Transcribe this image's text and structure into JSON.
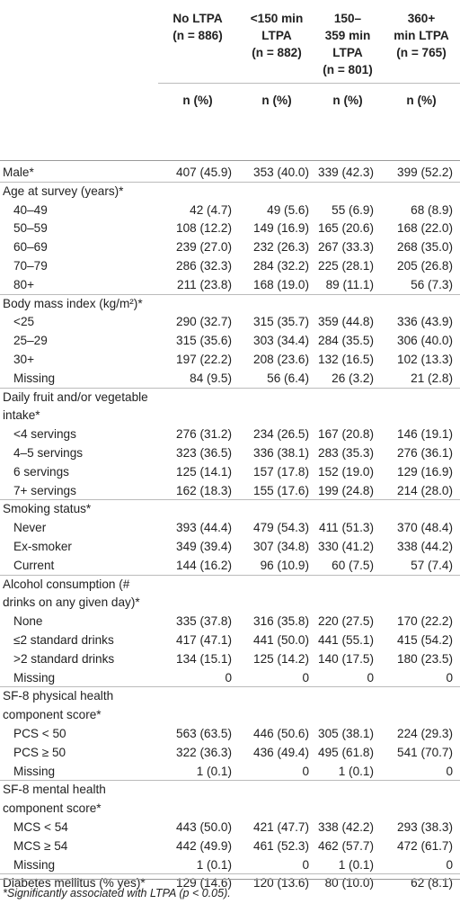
{
  "columns": [
    {
      "line1": "No LTPA",
      "line2": "(n = 886)",
      "line3": "",
      "line4": ""
    },
    {
      "line1": "<150 min",
      "line2": "LTPA",
      "line3": "(n = 882)",
      "line4": ""
    },
    {
      "line1": "150–",
      "line2": "359 min",
      "line3": "LTPA",
      "line4": "(n = 801)"
    },
    {
      "line1": "360+",
      "line2": "min LTPA",
      "line3": "(n = 765)",
      "line4": ""
    }
  ],
  "subheader": "n (%)",
  "rows": [
    {
      "label": "Male*",
      "values": [
        "407 (45.9)",
        "353 (40.0)",
        "339 (42.3)",
        "399 (52.2)"
      ]
    },
    {
      "label": "Age at survey (years)*",
      "header": true
    },
    {
      "label": "40–49",
      "indent": true,
      "values": [
        "42 (4.7)",
        "49 (5.6)",
        "55 (6.9)",
        "68 (8.9)"
      ]
    },
    {
      "label": "50–59",
      "indent": true,
      "values": [
        "108 (12.2)",
        "149 (16.9)",
        "165 (20.6)",
        "168 (22.0)"
      ]
    },
    {
      "label": "60–69",
      "indent": true,
      "values": [
        "239 (27.0)",
        "232 (26.3)",
        "267 (33.3)",
        "268 (35.0)"
      ]
    },
    {
      "label": "70–79",
      "indent": true,
      "values": [
        "286 (32.3)",
        "284 (32.2)",
        "225 (28.1)",
        "205 (26.8)"
      ]
    },
    {
      "label": "80+",
      "indent": true,
      "values": [
        "211 (23.8)",
        "168 (19.0)",
        "89 (11.1)",
        "56 (7.3)"
      ]
    },
    {
      "label": "Body mass index (kg/m²)*",
      "header": true
    },
    {
      "label": "<25",
      "indent": true,
      "values": [
        "290 (32.7)",
        "315 (35.7)",
        "359 (44.8)",
        "336 (43.9)"
      ]
    },
    {
      "label": "25–29",
      "indent": true,
      "values": [
        "315 (35.6)",
        "303 (34.4)",
        "284 (35.5)",
        "306 (40.0)"
      ]
    },
    {
      "label": "30+",
      "indent": true,
      "values": [
        "197 (22.2)",
        "208 (23.6)",
        "132 (16.5)",
        "102 (13.3)"
      ]
    },
    {
      "label": "Missing",
      "indent": true,
      "values": [
        "84 (9.5)",
        "56 (6.4)",
        "26 (3.2)",
        "21 (2.8)"
      ]
    },
    {
      "label": "Daily fruit and/or vegetable",
      "header": true
    },
    {
      "label": "intake*",
      "header": true,
      "cont": true
    },
    {
      "label": "<4 servings",
      "indent": true,
      "values": [
        "276 (31.2)",
        "234 (26.5)",
        "167 (20.8)",
        "146 (19.1)"
      ]
    },
    {
      "label": "4–5 servings",
      "indent": true,
      "values": [
        "323 (36.5)",
        "336 (38.1)",
        "283 (35.3)",
        "276 (36.1)"
      ]
    },
    {
      "label": "6 servings",
      "indent": true,
      "values": [
        "125 (14.1)",
        "157 (17.8)",
        "152 (19.0)",
        "129 (16.9)"
      ]
    },
    {
      "label": "7+ servings",
      "indent": true,
      "values": [
        "162 (18.3)",
        "155 (17.6)",
        "199 (24.8)",
        "214 (28.0)"
      ]
    },
    {
      "label": "Smoking status*",
      "header": true
    },
    {
      "label": "Never",
      "indent": true,
      "values": [
        "393 (44.4)",
        "479 (54.3)",
        "411 (51.3)",
        "370 (48.4)"
      ]
    },
    {
      "label": "Ex-smoker",
      "indent": true,
      "values": [
        "349 (39.4)",
        "307 (34.8)",
        "330 (41.2)",
        "338 (44.2)"
      ]
    },
    {
      "label": "Current",
      "indent": true,
      "values": [
        "144 (16.2)",
        "96 (10.9)",
        "60 (7.5)",
        "57 (7.4)"
      ]
    },
    {
      "label": "Alcohol consumption (#",
      "header": true
    },
    {
      "label": "drinks on any given day)*",
      "header": true,
      "cont": true
    },
    {
      "label": "None",
      "indent": true,
      "values": [
        "335 (37.8)",
        "316 (35.8)",
        "220 (27.5)",
        "170 (22.2)"
      ]
    },
    {
      "label": "≤2 standard drinks",
      "indent": true,
      "values": [
        "417 (47.1)",
        "441 (50.0)",
        "441 (55.1)",
        "415 (54.2)"
      ]
    },
    {
      "label": ">2 standard drinks",
      "indent": true,
      "values": [
        "134 (15.1)",
        "125 (14.2)",
        "140 (17.5)",
        "180 (23.5)"
      ]
    },
    {
      "label": "Missing",
      "indent": true,
      "values": [
        "0",
        "0",
        "0",
        "0"
      ]
    },
    {
      "label": "SF-8 physical health",
      "header": true
    },
    {
      "label": "component score*",
      "header": true,
      "cont": true
    },
    {
      "label": "PCS < 50",
      "indent": true,
      "values": [
        "563 (63.5)",
        "446 (50.6)",
        "305 (38.1)",
        "224 (29.3)"
      ]
    },
    {
      "label": "PCS ≥ 50",
      "indent": true,
      "values": [
        "322 (36.3)",
        "436 (49.4)",
        "495 (61.8)",
        "541 (70.7)"
      ]
    },
    {
      "label": "Missing",
      "indent": true,
      "values": [
        "1 (0.1)",
        "0",
        "1 (0.1)",
        "0"
      ]
    },
    {
      "label": "SF-8 mental health",
      "header": true
    },
    {
      "label": "component score*",
      "header": true,
      "cont": true
    },
    {
      "label": "MCS < 54",
      "indent": true,
      "values": [
        "443 (50.0)",
        "421 (47.7)",
        "338 (42.2)",
        "293 (38.3)"
      ]
    },
    {
      "label": "MCS ≥ 54",
      "indent": true,
      "values": [
        "442 (49.9)",
        "461 (52.3)",
        "462 (57.7)",
        "472 (61.7)"
      ]
    },
    {
      "label": "Missing",
      "indent": true,
      "values": [
        "1 (0.1)",
        "0",
        "1 (0.1)",
        "0"
      ]
    },
    {
      "label": "Diabetes mellitus (% yes)*",
      "values": [
        "129 (14.6)",
        "120 (13.6)",
        "80 (10.0)",
        "62 (8.1)"
      ]
    }
  ],
  "footnote": "*Significantly associated with LTPA (p < 0.05)."
}
